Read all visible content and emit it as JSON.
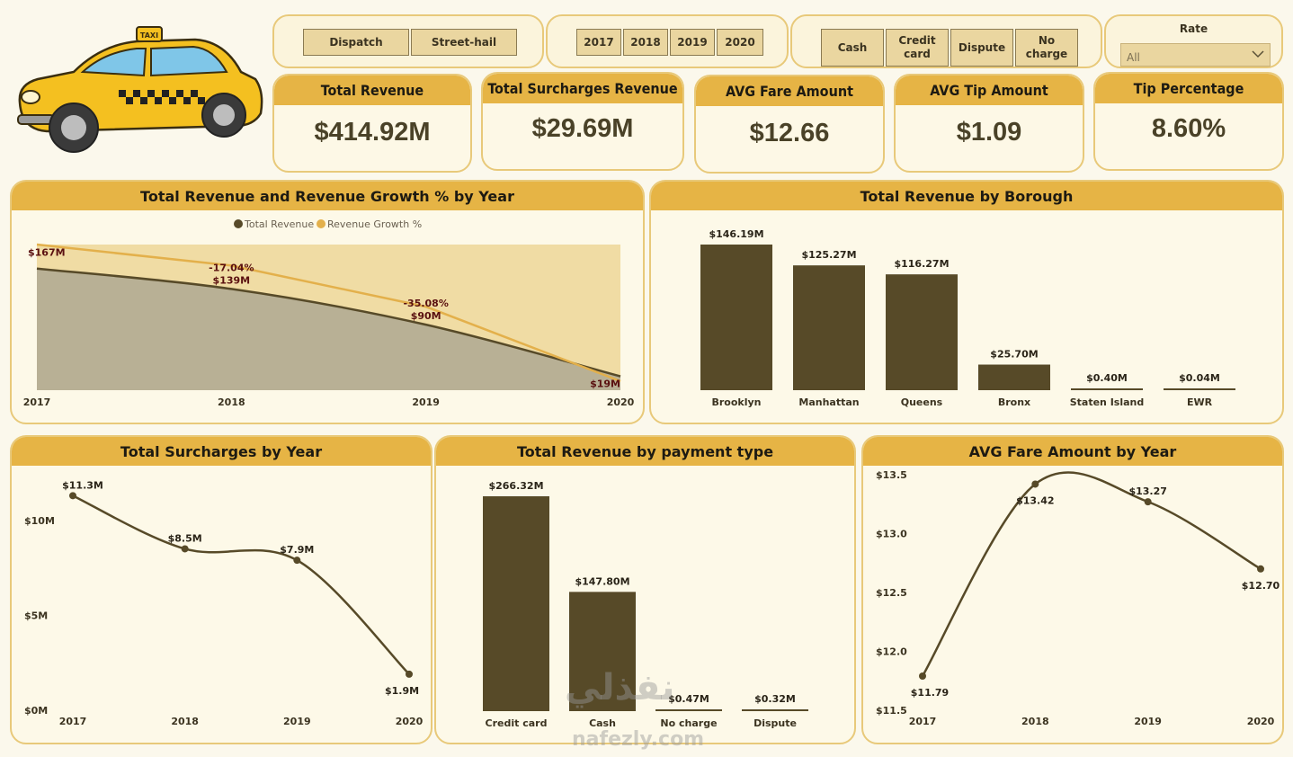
{
  "colors": {
    "accent": "#e6b445",
    "dark_series": "#574a28",
    "light_series": "#e3b04b",
    "panel_bg": "#fdf9e8",
    "label_dark": "#5a1010"
  },
  "logo": {
    "icon": "taxi-icon"
  },
  "slicers": {
    "trip_type": [
      "Dispatch",
      "Street-hail"
    ],
    "years": [
      "2017",
      "2018",
      "2019",
      "2020"
    ],
    "payment": [
      "Cash",
      "Credit card",
      "Dispute",
      "No charge"
    ],
    "rate": {
      "label": "Rate",
      "value": "All",
      "icon": "chevron-down-icon"
    }
  },
  "kpis": {
    "total_revenue": {
      "label": "Total Revenue",
      "value": "$414.92M"
    },
    "total_surcharges": {
      "label": "Total Surcharges Revenue",
      "value": "$29.69M"
    },
    "avg_fare": {
      "label": "AVG Fare Amount",
      "value": "$12.66"
    },
    "avg_tip": {
      "label": "AVG Tip Amount",
      "value": "$1.09"
    },
    "tip_pct": {
      "label": "Tip Percentage",
      "value": "8.60%"
    }
  },
  "chart_data": [
    {
      "id": "revenue_growth",
      "type": "area",
      "title": "Total Revenue and Revenue Growth % by Year",
      "legend": [
        "Total Revenue",
        "Revenue Growth %"
      ],
      "x": [
        "2017",
        "2018",
        "2019",
        "2020"
      ],
      "series": [
        {
          "name": "Total Revenue",
          "values": [
            167,
            139,
            90,
            19
          ],
          "labels": [
            "$167M",
            "$139M",
            "$90M",
            "$19M"
          ]
        },
        {
          "name": "Revenue Growth %",
          "values": [
            null,
            -17.04,
            -35.08,
            null
          ],
          "labels": [
            "",
            "-17.04%",
            "-35.08%",
            ""
          ]
        }
      ]
    },
    {
      "id": "revenue_borough",
      "type": "bar",
      "title": "Total Revenue by Borough",
      "categories": [
        "Brooklyn",
        "Manhattan",
        "Queens",
        "Bronx",
        "Staten Island",
        "EWR"
      ],
      "values": [
        146.19,
        125.27,
        116.27,
        25.7,
        0.4,
        0.04
      ],
      "labels": [
        "$146.19M",
        "$125.27M",
        "$116.27M",
        "$25.70M",
        "$0.40M",
        "$0.04M"
      ]
    },
    {
      "id": "surcharges_year",
      "type": "line",
      "title": "Total Surcharges by Year",
      "categories": [
        "2017",
        "2018",
        "2019",
        "2020"
      ],
      "values": [
        11.3,
        8.5,
        7.9,
        1.9
      ],
      "labels": [
        "$11.3M",
        "$8.5M",
        "$7.9M",
        "$1.9M"
      ],
      "yticks": [
        "$0M",
        "$5M",
        "$10M"
      ],
      "ylim": [
        0,
        12.5
      ]
    },
    {
      "id": "revenue_payment",
      "type": "bar",
      "title": "Total Revenue by payment type",
      "categories": [
        "Credit card",
        "Cash",
        "No charge",
        "Dispute"
      ],
      "values": [
        266.32,
        147.8,
        0.47,
        0.32
      ],
      "labels": [
        "$266.32M",
        "$147.80M",
        "$0.47M",
        "$0.32M"
      ]
    },
    {
      "id": "avg_fare_year",
      "type": "line",
      "title": "AVG Fare Amount by Year",
      "categories": [
        "2017",
        "2018",
        "2019",
        "2020"
      ],
      "values": [
        11.79,
        13.42,
        13.27,
        12.7
      ],
      "labels": [
        "$11.79",
        "$13.42",
        "$13.27",
        "$12.70"
      ],
      "yticks": [
        "$11.5",
        "$12.0",
        "$12.5",
        "$13.0",
        "$13.5"
      ],
      "ylim": [
        11.5,
        13.5
      ]
    }
  ],
  "watermark": {
    "arabic": "نفذلي",
    "latin": "nafezly.com"
  }
}
